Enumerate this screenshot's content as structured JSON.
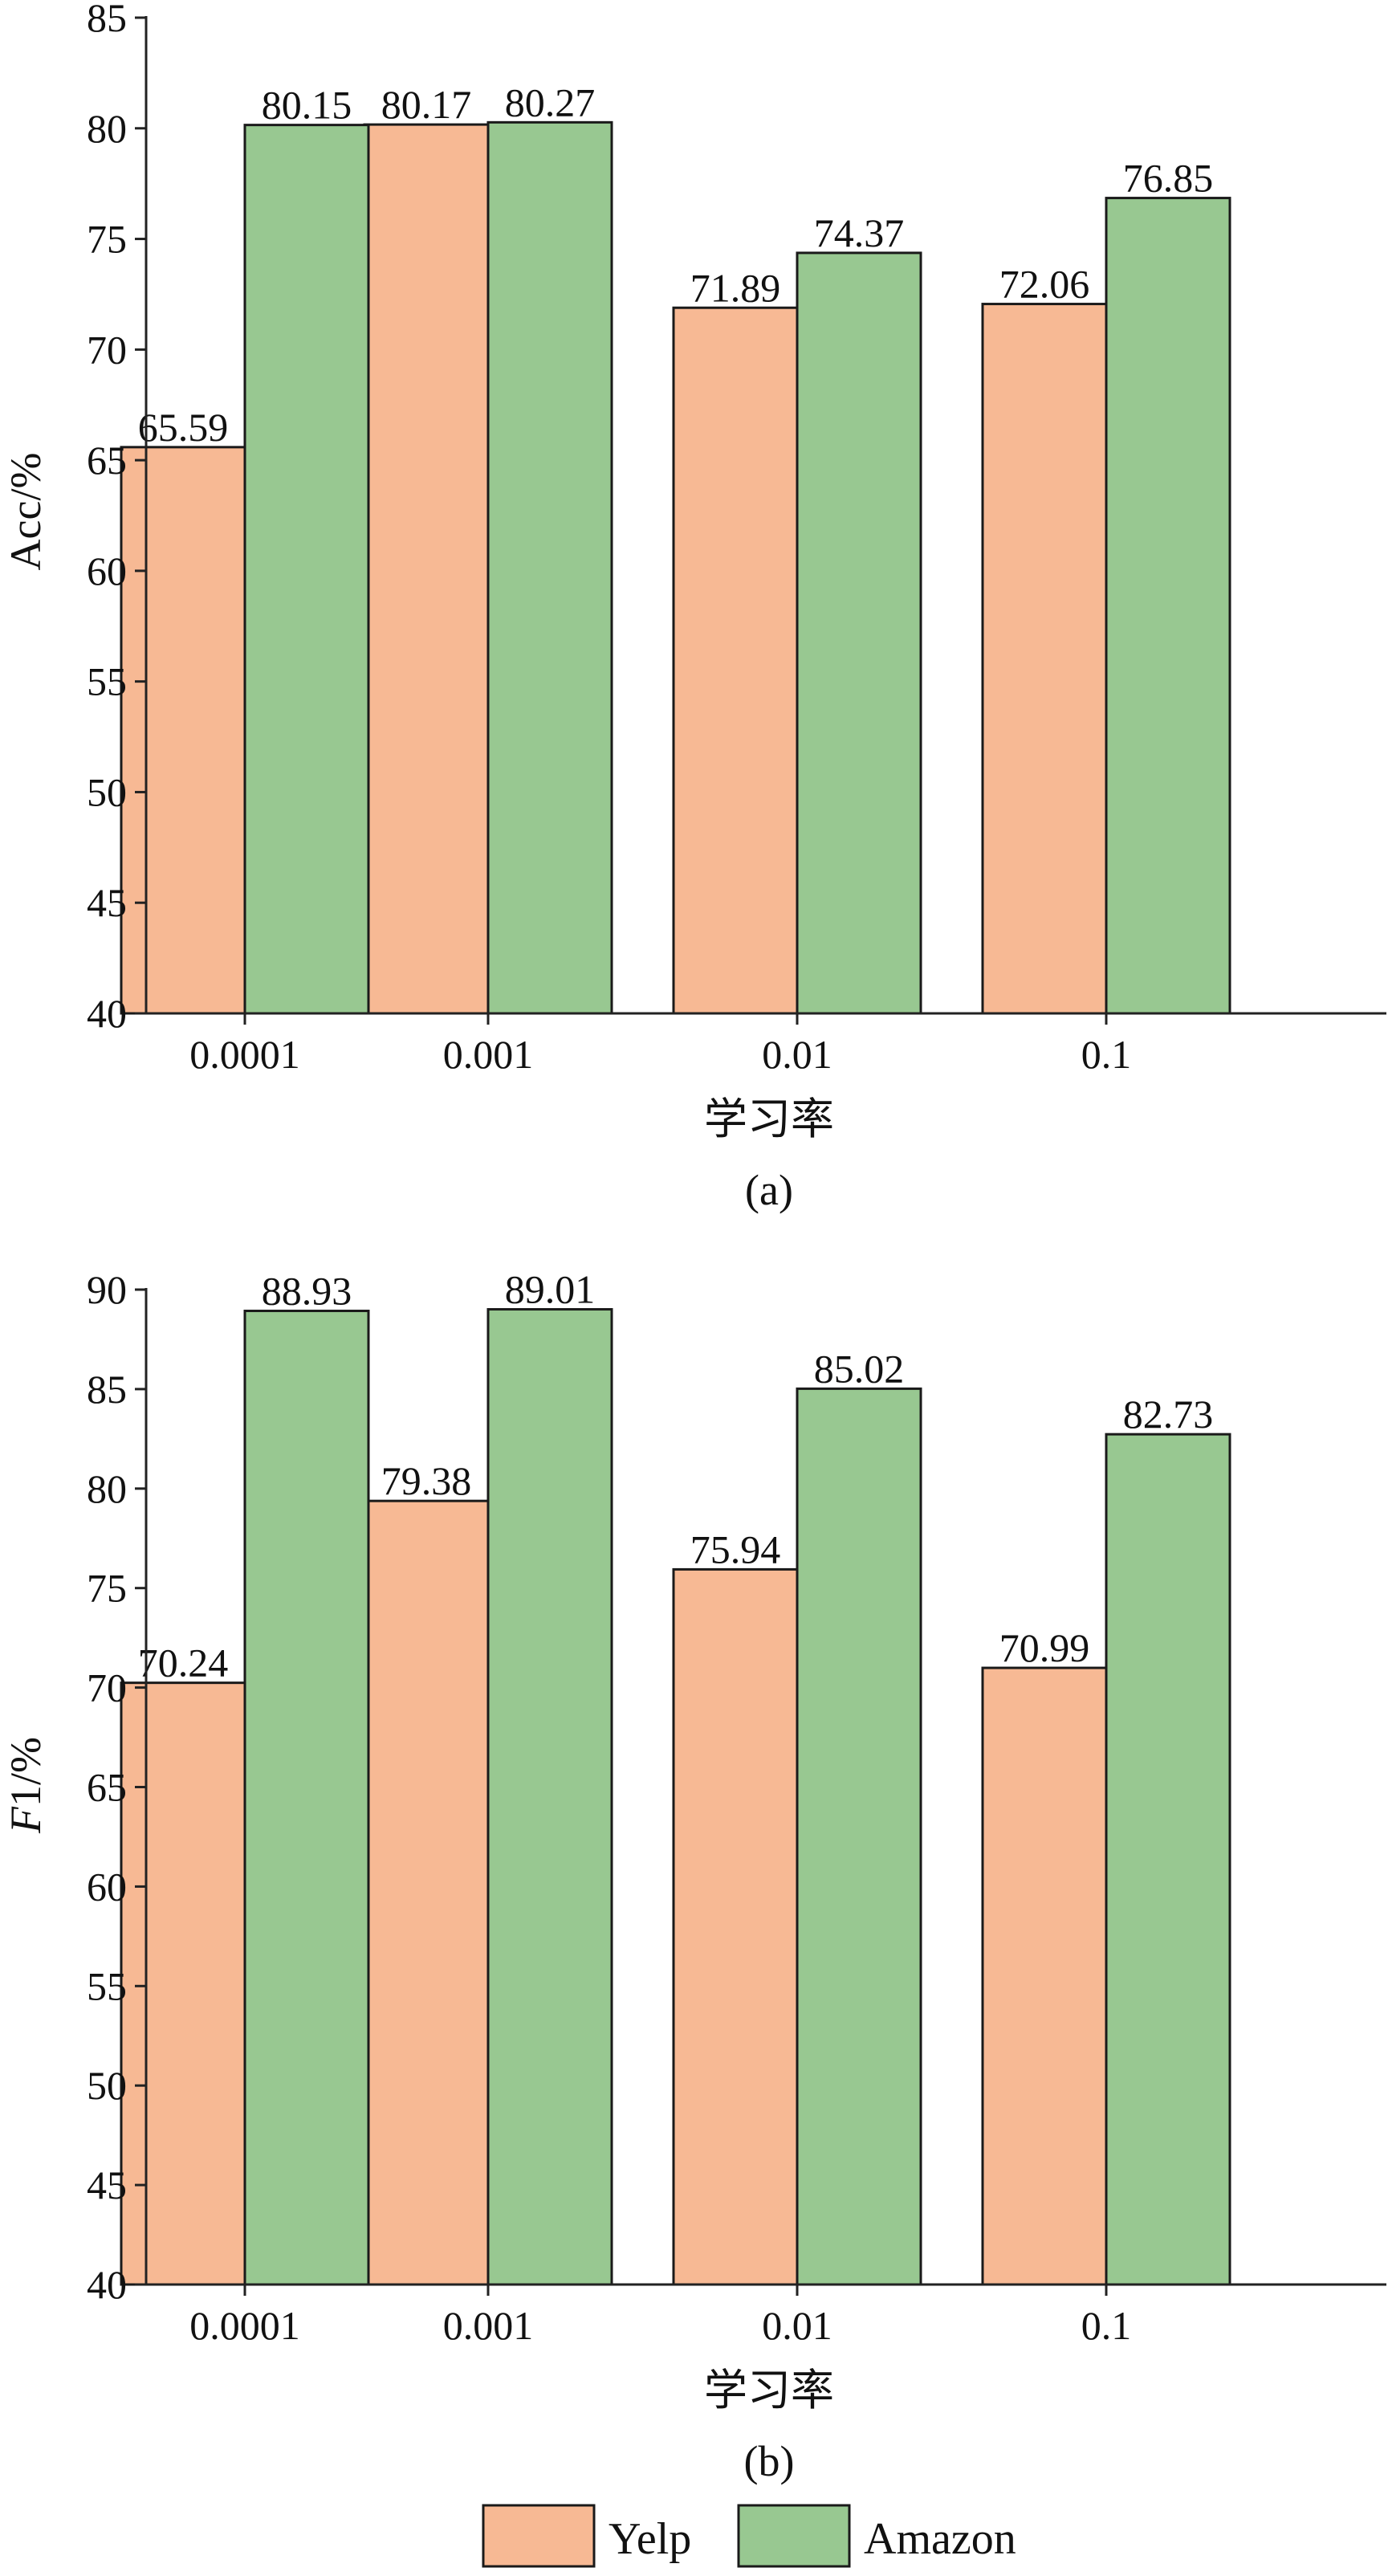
{
  "colors": {
    "Yelp": "#f7b994",
    "Amazon": "#98c891",
    "axis": "#222222",
    "bar_edge": "#1a1a1a"
  },
  "legend": {
    "position": "bottom-center",
    "items": [
      "Yelp",
      "Amazon"
    ]
  },
  "chart_data": [
    {
      "type": "bar",
      "panel_label": "(a)",
      "categories": [
        "0.0001",
        "0.001",
        "0.01",
        "0.1"
      ],
      "series": [
        {
          "name": "Yelp",
          "values": [
            65.59,
            80.17,
            71.89,
            72.06
          ],
          "labels": [
            "65.59",
            "80.17",
            "71.89",
            "72.06"
          ]
        },
        {
          "name": "Amazon",
          "values": [
            80.15,
            80.27,
            74.37,
            76.85
          ],
          "labels": [
            "80.15",
            "80.27",
            "74.37",
            "76.85"
          ]
        }
      ],
      "xlabel": "学习率",
      "ylabel": "Acc/%",
      "ylim": [
        40,
        85
      ],
      "yticks": [
        "40",
        "45",
        "50",
        "55",
        "60",
        "65",
        "70",
        "75",
        "80",
        "85"
      ],
      "grid": false
    },
    {
      "type": "bar",
      "panel_label": "(b)",
      "categories": [
        "0.0001",
        "0.001",
        "0.01",
        "0.1"
      ],
      "series": [
        {
          "name": "Yelp",
          "values": [
            70.24,
            79.38,
            75.94,
            70.99
          ],
          "labels": [
            "70.24",
            "79.38",
            "75.94",
            "70.99"
          ]
        },
        {
          "name": "Amazon",
          "values": [
            88.93,
            89.01,
            85.02,
            82.73
          ],
          "labels": [
            "88.93",
            "89.01",
            "85.02",
            "82.73"
          ]
        }
      ],
      "xlabel": "学习率",
      "ylabel": "F1/%",
      "ylabel_italic_part": "F",
      "ylabel_rest": "1/%",
      "ylim": [
        40,
        90
      ],
      "yticks": [
        "40",
        "45",
        "50",
        "55",
        "60",
        "65",
        "70",
        "75",
        "80",
        "85",
        "90"
      ],
      "grid": false
    }
  ]
}
